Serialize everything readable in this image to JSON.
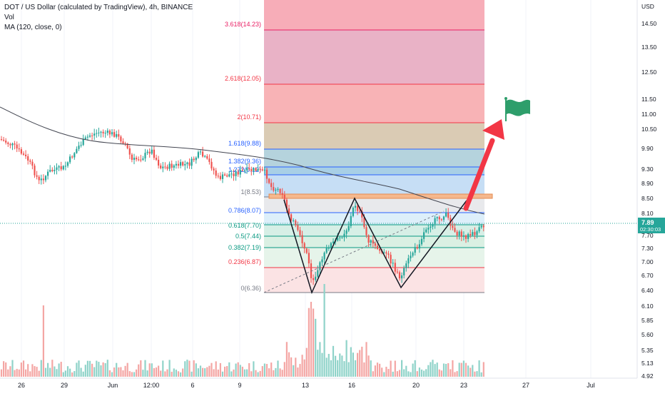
{
  "legend": {
    "title": "DOT / US Dollar (calculated by TradingView), 4h, BINANCE",
    "vol": "Vol",
    "ma": "MA (120, close, 0)"
  },
  "price_axis": {
    "unit": "USD",
    "ticks": [
      "14.50",
      "13.50",
      "12.50",
      "11.50",
      "11.00",
      "10.50",
      "9.90",
      "9.30",
      "8.90",
      "8.50",
      "8.10",
      "7.70",
      "7.30",
      "7.00",
      "6.70",
      "6.40",
      "6.10",
      "5.85",
      "5.60",
      "5.35",
      "5.13",
      "4.92"
    ],
    "current_price": "7.89",
    "countdown": "02:30:03"
  },
  "time_axis": {
    "labels": [
      "26",
      "29",
      "Jun",
      "12:00",
      "6",
      "9",
      "13",
      "16",
      "20",
      "23",
      "27",
      "Jul"
    ]
  },
  "fib_levels": [
    {
      "label": "3.618(14.23)",
      "color": "#e91e63"
    },
    {
      "label": "2.618(12.05)",
      "color": "#f23645"
    },
    {
      "label": "2(10.71)",
      "color": "#f23645"
    },
    {
      "label": "1.618(9.88)",
      "color": "#2962ff"
    },
    {
      "label": "1.382(9.36)",
      "color": "#2962ff"
    },
    {
      "label": "1.272(9.12)",
      "color": "#2962ff"
    },
    {
      "label": "1(8.53)",
      "color": "#787b86"
    },
    {
      "label": "0.786(8.07)",
      "color": "#2962ff"
    },
    {
      "label": "0.618(7.70)",
      "color": "#089981"
    },
    {
      "label": "0.5(7.44)",
      "color": "#089981"
    },
    {
      "label": "0.382(7.19)",
      "color": "#089981"
    },
    {
      "label": "0.236(6.87)",
      "color": "#f23645"
    },
    {
      "label": "0(6.36)",
      "color": "#787b86"
    }
  ],
  "colors": {
    "up": "#26a69a",
    "down": "#ef5350",
    "ma": "#434651",
    "arrow": "#f23645",
    "flag": "#2e9e6b",
    "price_tag": "#26a69a"
  },
  "chart_data": {
    "type": "candlestick",
    "symbol": "DOT / US Dollar (calculated by TradingView), 4h, BINANCE",
    "y_axis_unit": "USD",
    "price_range": [
      4.92,
      15.0
    ],
    "last_price": 7.89,
    "moving_average": {
      "name": "MA (120, close, 0)",
      "start": 10.9,
      "end": 8.1
    },
    "pattern": "double bottom (W) with fibonacci extension",
    "fibonacci": [
      {
        "ratio": 0,
        "price": 6.36
      },
      {
        "ratio": 0.236,
        "price": 6.87
      },
      {
        "ratio": 0.382,
        "price": 7.19
      },
      {
        "ratio": 0.5,
        "price": 7.44
      },
      {
        "ratio": 0.618,
        "price": 7.7
      },
      {
        "ratio": 0.786,
        "price": 8.07
      },
      {
        "ratio": 1,
        "price": 8.53
      },
      {
        "ratio": 1.272,
        "price": 9.12
      },
      {
        "ratio": 1.382,
        "price": 9.36
      },
      {
        "ratio": 1.618,
        "price": 9.88
      },
      {
        "ratio": 2,
        "price": 10.71
      },
      {
        "ratio": 2.618,
        "price": 12.05
      },
      {
        "ratio": 3.618,
        "price": 14.23
      }
    ],
    "key_points": [
      {
        "label": "low 1",
        "price": 6.36
      },
      {
        "label": "peak",
        "price": 8.53
      },
      {
        "label": "low 2",
        "price": 6.45
      }
    ]
  }
}
